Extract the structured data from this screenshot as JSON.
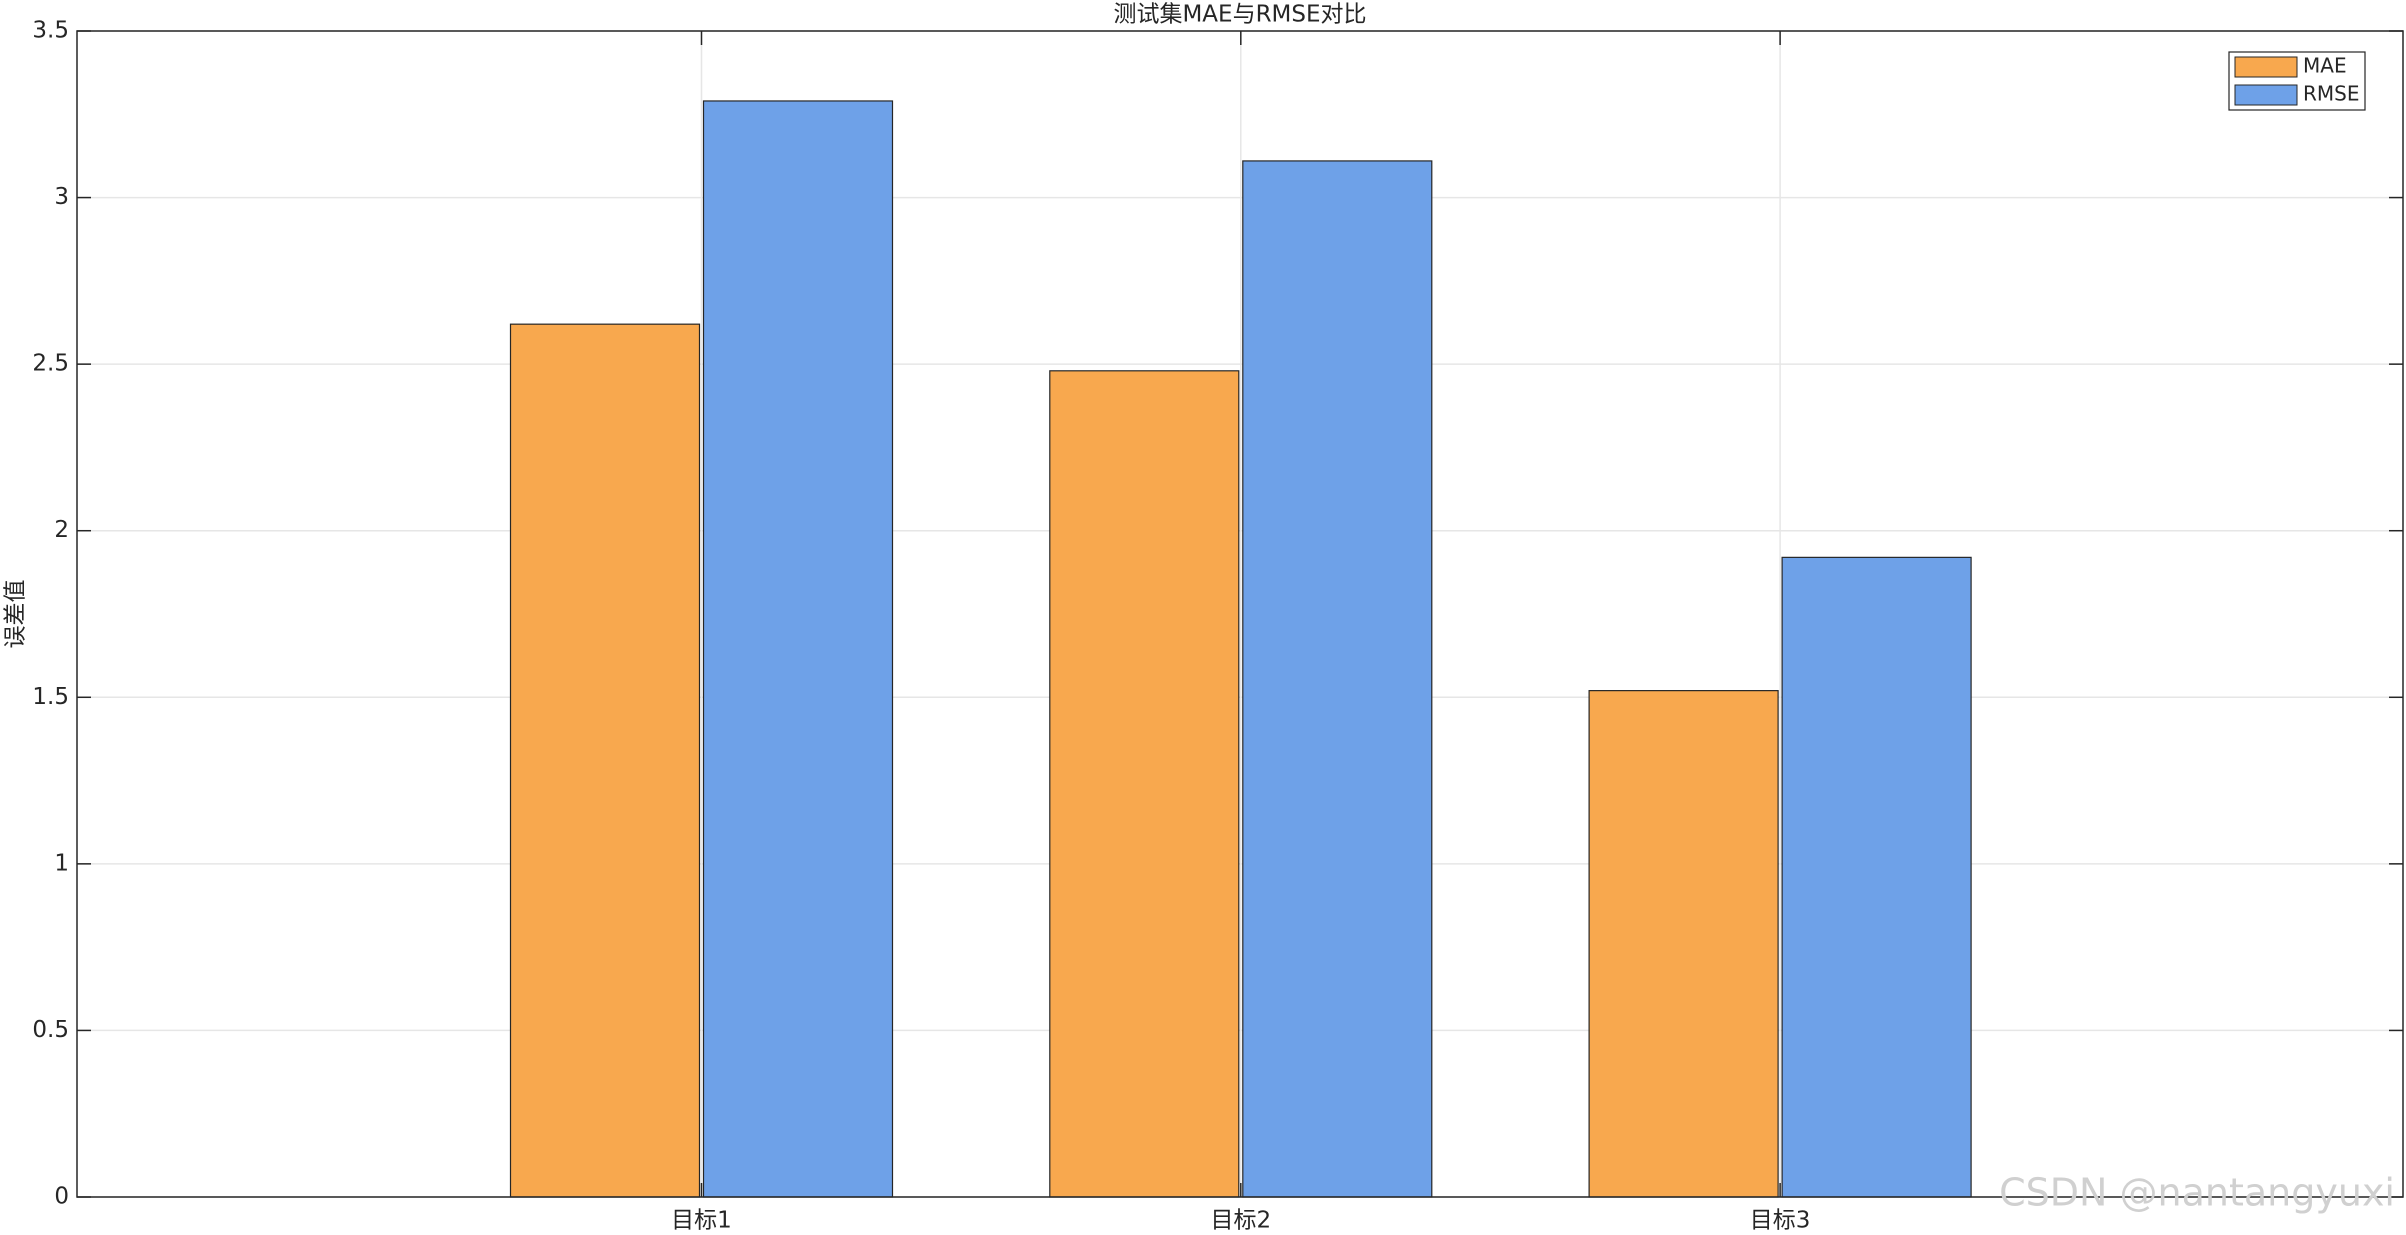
{
  "chart_data": {
    "type": "bar",
    "title": "测试集MAE与RMSE对比",
    "y_label": "误差值",
    "categories": [
      "目标1",
      "目标2",
      "目标3"
    ],
    "series": [
      {
        "name": "MAE",
        "color": "#f8a84e",
        "values": [
          2.62,
          2.48,
          1.52
        ]
      },
      {
        "name": "RMSE",
        "color": "#6ea1e8",
        "values": [
          3.29,
          3.11,
          1.92
        ]
      }
    ],
    "ylim": [
      0,
      3.5
    ],
    "yticks": [
      0,
      0.5,
      1,
      1.5,
      2,
      2.5,
      3,
      3.5
    ],
    "grid": true,
    "legend": "northeast",
    "watermark": "CSDN @nantangyuxi"
  }
}
